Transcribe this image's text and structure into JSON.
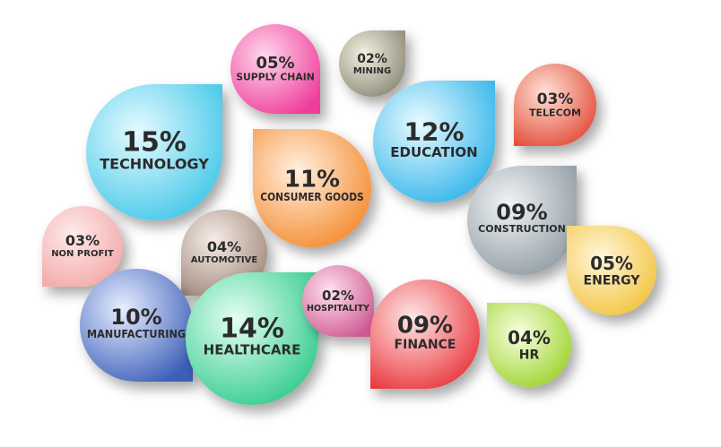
{
  "chart_data": {
    "type": "bubble",
    "title": "",
    "unit": "%",
    "items": [
      {
        "label": "TECHNOLOGY",
        "value": "15%",
        "color_light": "#e6fbff",
        "color_dark": "#3fc6e8"
      },
      {
        "label": "SUPPLY CHAIN",
        "value": "05%",
        "color_light": "#ffd6ec",
        "color_dark": "#ee3e9a"
      },
      {
        "label": "MINING",
        "value": "02%",
        "color_light": "#f2f0e0",
        "color_dark": "#8c8876"
      },
      {
        "label": "EDUCATION",
        "value": "12%",
        "color_light": "#e9fbff",
        "color_dark": "#2fb3ea"
      },
      {
        "label": "TELECOM",
        "value": "03%",
        "color_light": "#ffe1d6",
        "color_dark": "#e24a36"
      },
      {
        "label": "CONSUMER GOODS",
        "value": "11%",
        "color_light": "#fff0e0",
        "color_dark": "#f5882a"
      },
      {
        "label": "CONSTRUCTION",
        "value": "09%",
        "color_light": "#f0f4f6",
        "color_dark": "#8f9aa2"
      },
      {
        "label": "NON PROFIT",
        "value": "03%",
        "color_light": "#ffeaea",
        "color_dark": "#f2a8a8"
      },
      {
        "label": "AUTOMOTIVE",
        "value": "04%",
        "color_light": "#f6ede8",
        "color_dark": "#a0887a"
      },
      {
        "label": "ENERGY",
        "value": "05%",
        "color_light": "#fff7dc",
        "color_dark": "#f2c23a"
      },
      {
        "label": "MANUFACTURING",
        "value": "10%",
        "color_light": "#e6eeff",
        "color_dark": "#3d5fb8"
      },
      {
        "label": "HEALTHCARE",
        "value": "14%",
        "color_light": "#e4fff2",
        "color_dark": "#2ec98a"
      },
      {
        "label": "HOSPITALITY",
        "value": "02%",
        "color_light": "#ffe0ee",
        "color_dark": "#cf5a92"
      },
      {
        "label": "FINANCE",
        "value": "09%",
        "color_light": "#ffe6e6",
        "color_dark": "#e8343a"
      },
      {
        "label": "HR",
        "value": "04%",
        "color_light": "#f8ffe0",
        "color_dark": "#9bd22a"
      }
    ]
  }
}
